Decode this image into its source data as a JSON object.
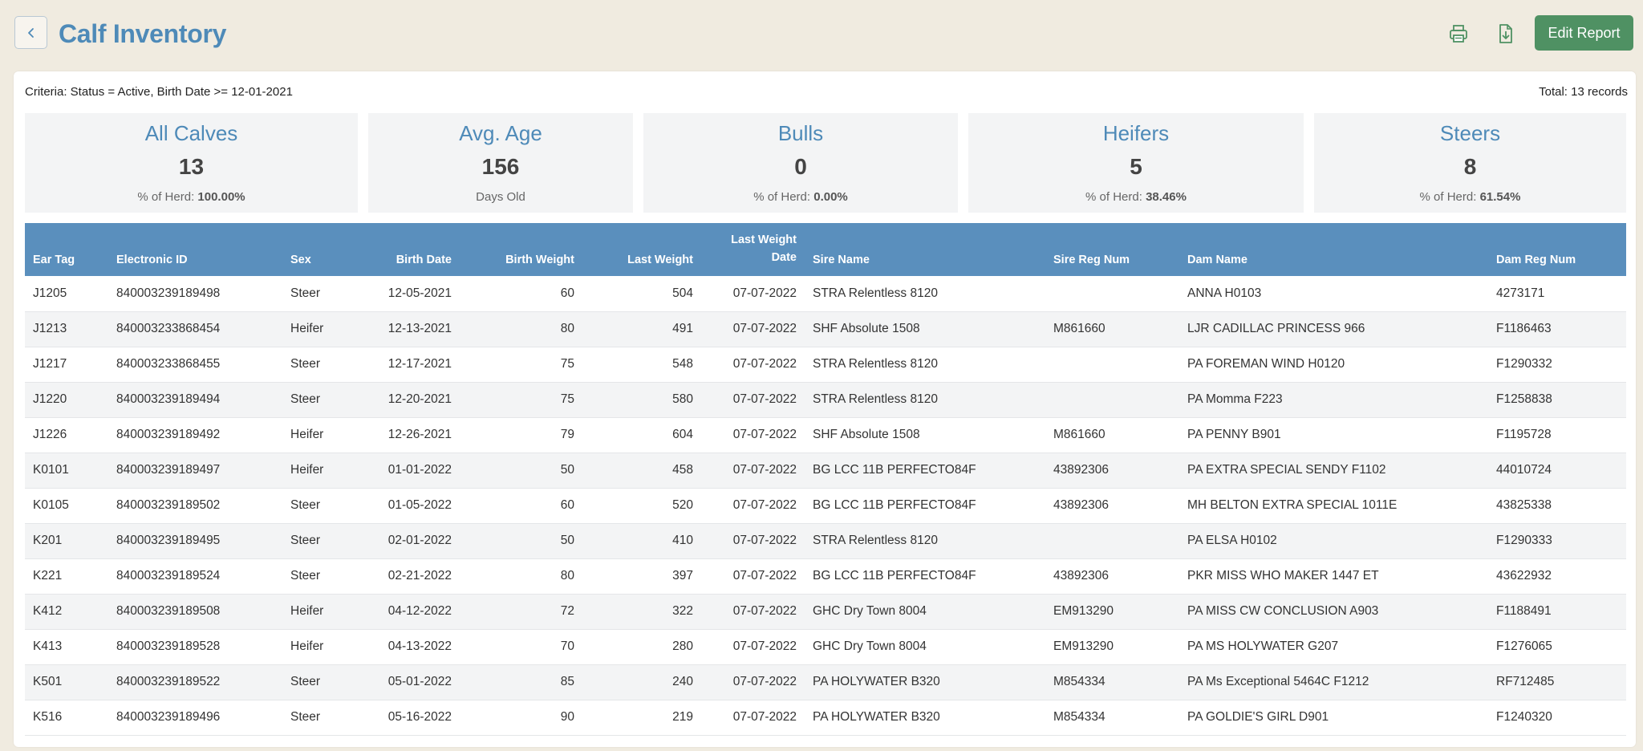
{
  "header": {
    "title": "Calf Inventory",
    "back_icon": "chevron-left-icon",
    "print_icon": "printer-icon",
    "export_icon": "file-download-icon",
    "edit_label": "Edit Report",
    "accent_color": "#4e8ab8",
    "button_color": "#4f9163"
  },
  "report": {
    "criteria": "Criteria: Status = Active, Birth Date >= 12-01-2021",
    "total": "Total: 13 records"
  },
  "cards": [
    {
      "title": "All Calves",
      "value": "13",
      "sub_label": "% of Herd: ",
      "sub_value": "100.00%"
    },
    {
      "title": "Avg. Age",
      "value": "156",
      "sub_label": "Days Old",
      "sub_value": ""
    },
    {
      "title": "Bulls",
      "value": "0",
      "sub_label": "% of Herd: ",
      "sub_value": "0.00%"
    },
    {
      "title": "Heifers",
      "value": "5",
      "sub_label": "% of Herd: ",
      "sub_value": "38.46%"
    },
    {
      "title": "Steers",
      "value": "8",
      "sub_label": "% of Herd: ",
      "sub_value": "61.54%"
    }
  ],
  "table": {
    "columns": {
      "ear_tag": "Ear Tag",
      "electronic_id": "Electronic ID",
      "sex": "Sex",
      "birth_date": "Birth Date",
      "birth_weight": "Birth Weight",
      "last_weight": "Last Weight",
      "last_weight_date_1": "Last Weight",
      "last_weight_date_2": "Date",
      "sire_name": "Sire Name",
      "sire_reg": "Sire Reg Num",
      "dam_name": "Dam Name",
      "dam_reg": "Dam Reg Num"
    },
    "rows": [
      [
        "J1205",
        "840003239189498",
        "Steer",
        "12-05-2021",
        "60",
        "504",
        "07-07-2022",
        "STRA Relentless 8120",
        "",
        "ANNA H0103",
        "4273171"
      ],
      [
        "J1213",
        "840003233868454",
        "Heifer",
        "12-13-2021",
        "80",
        "491",
        "07-07-2022",
        "SHF Absolute 1508",
        "M861660",
        "LJR CADILLAC PRINCESS 966",
        "F1186463"
      ],
      [
        "J1217",
        "840003233868455",
        "Steer",
        "12-17-2021",
        "75",
        "548",
        "07-07-2022",
        "STRA Relentless 8120",
        "",
        "PA FOREMAN WIND H0120",
        "F1290332"
      ],
      [
        "J1220",
        "840003239189494",
        "Steer",
        "12-20-2021",
        "75",
        "580",
        "07-07-2022",
        "STRA Relentless 8120",
        "",
        "PA Momma F223",
        "F1258838"
      ],
      [
        "J1226",
        "840003239189492",
        "Heifer",
        "12-26-2021",
        "79",
        "604",
        "07-07-2022",
        "SHF Absolute 1508",
        "M861660",
        "PA PENNY B901",
        "F1195728"
      ],
      [
        "K0101",
        "840003239189497",
        "Heifer",
        "01-01-2022",
        "50",
        "458",
        "07-07-2022",
        "BG LCC 11B PERFECTO84F",
        "43892306",
        "PA EXTRA SPECIAL SENDY F1102",
        "44010724"
      ],
      [
        "K0105",
        "840003239189502",
        "Steer",
        "01-05-2022",
        "60",
        "520",
        "07-07-2022",
        "BG LCC 11B PERFECTO84F",
        "43892306",
        "MH BELTON EXTRA SPECIAL 1011E",
        "43825338"
      ],
      [
        "K201",
        "840003239189495",
        "Steer",
        "02-01-2022",
        "50",
        "410",
        "07-07-2022",
        "STRA Relentless 8120",
        "",
        "PA ELSA H0102",
        "F1290333"
      ],
      [
        "K221",
        "840003239189524",
        "Steer",
        "02-21-2022",
        "80",
        "397",
        "07-07-2022",
        "BG LCC 11B PERFECTO84F",
        "43892306",
        "PKR MISS WHO MAKER 1447 ET",
        "43622932"
      ],
      [
        "K412",
        "840003239189508",
        "Heifer",
        "04-12-2022",
        "72",
        "322",
        "07-07-2022",
        "GHC Dry Town 8004",
        "EM913290",
        "PA MISS CW CONCLUSION A903",
        "F1188491"
      ],
      [
        "K413",
        "840003239189528",
        "Heifer",
        "04-13-2022",
        "70",
        "280",
        "07-07-2022",
        "GHC Dry Town 8004",
        "EM913290",
        "PA MS HOLYWATER G207",
        "F1276065"
      ],
      [
        "K501",
        "840003239189522",
        "Steer",
        "05-01-2022",
        "85",
        "240",
        "07-07-2022",
        "PA HOLYWATER B320",
        "M854334",
        "PA Ms Exceptional 5464C F1212",
        "RF712485"
      ],
      [
        "K516",
        "840003239189496",
        "Steer",
        "05-16-2022",
        "90",
        "219",
        "07-07-2022",
        "PA HOLYWATER B320",
        "M854334",
        "PA GOLDIE'S GIRL D901",
        "F1240320"
      ]
    ]
  }
}
